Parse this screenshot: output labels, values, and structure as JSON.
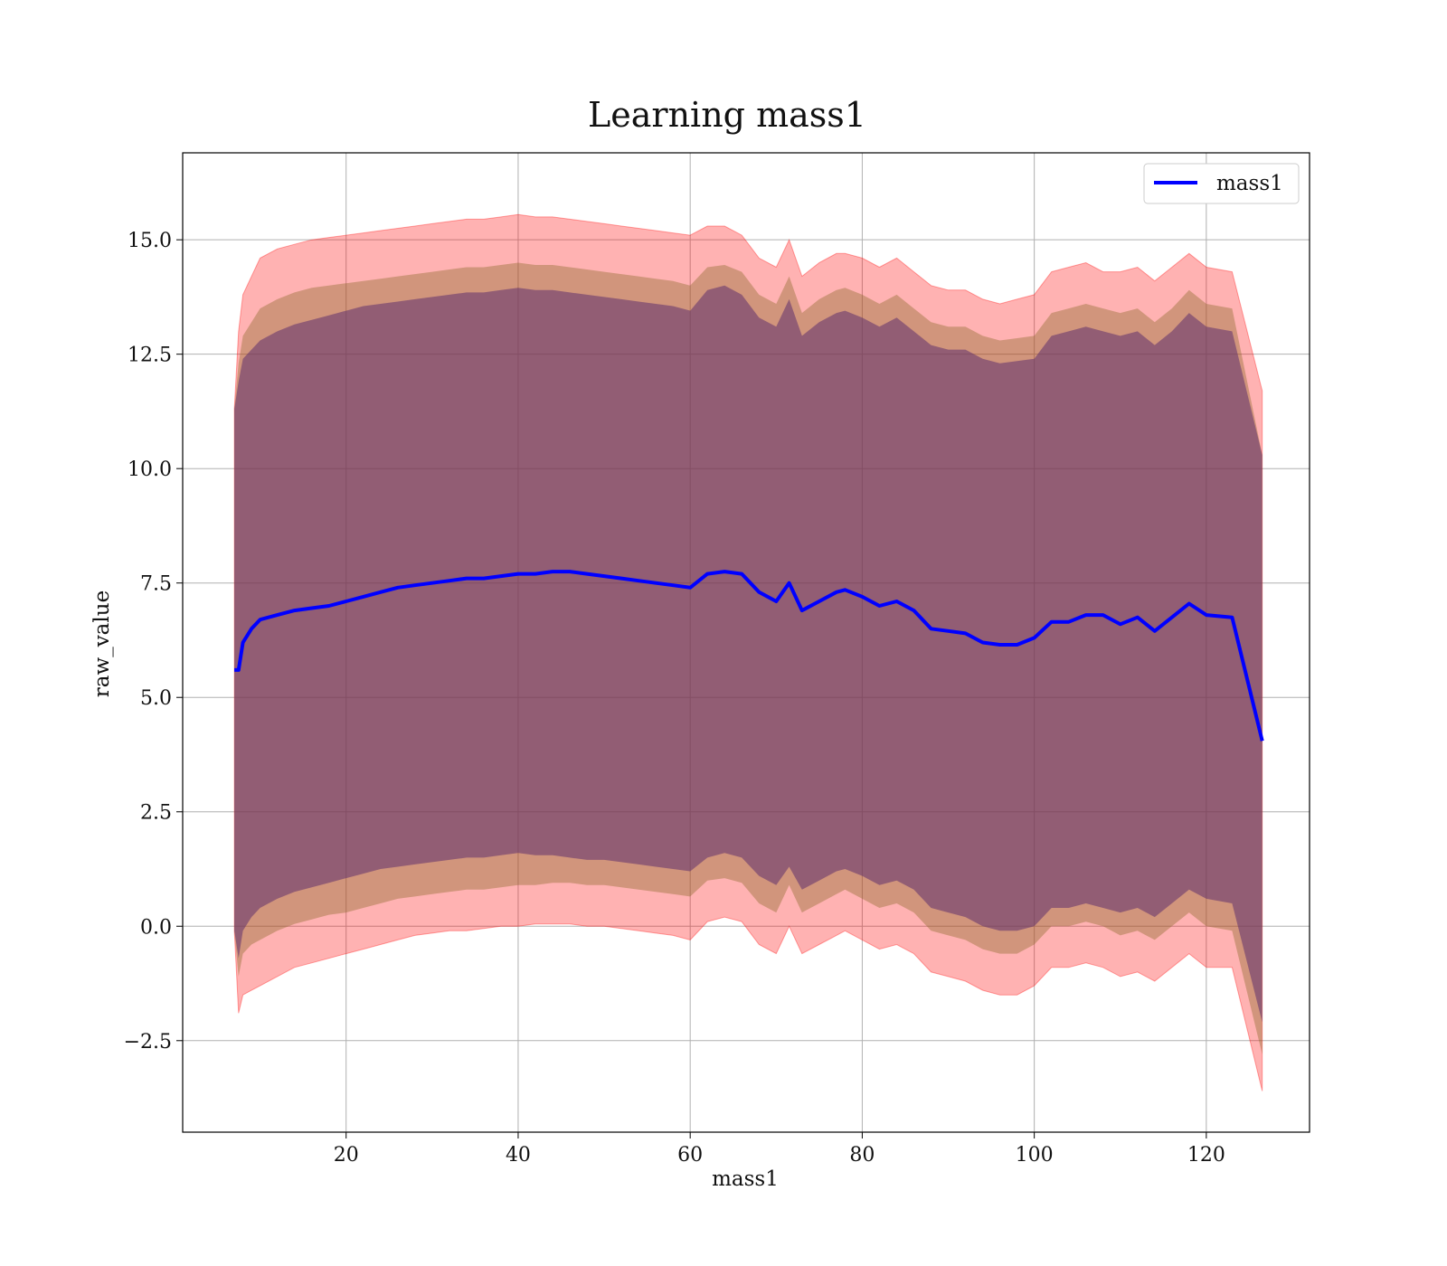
{
  "chart_data": {
    "type": "area",
    "title": "Learning mass1",
    "xlabel": "mass1",
    "ylabel": "raw_value",
    "xlim": [
      1,
      132
    ],
    "ylim": [
      -4.5,
      16.9
    ],
    "xticks": [
      20,
      40,
      60,
      80,
      100,
      120
    ],
    "yticks": [
      -2.5,
      0.0,
      2.5,
      5.0,
      7.5,
      10.0,
      12.5,
      15.0
    ],
    "xtick_labels": [
      "20",
      "40",
      "60",
      "80",
      "100",
      "120"
    ],
    "ytick_labels": [
      "−2.5",
      "0.0",
      "2.5",
      "5.0",
      "7.5",
      "10.0",
      "12.5",
      "15.0"
    ],
    "grid": true,
    "legend": {
      "position": "top-right",
      "entries": [
        "mass1"
      ]
    },
    "colors": {
      "line": "#0000ff",
      "band_outer": "#ff0000",
      "band_middle": "#8b6a2a",
      "band_inner": "#5e2f6e"
    },
    "series": [
      {
        "name": "mass1",
        "x": [
          7,
          7.5,
          8,
          9,
          10,
          12,
          14,
          16,
          18,
          20,
          22,
          24,
          26,
          28,
          30,
          32,
          34,
          36,
          38,
          40,
          42,
          44,
          46,
          48,
          50,
          52,
          54,
          56,
          58,
          60,
          62,
          64,
          66,
          68,
          70,
          71.5,
          73,
          75,
          77,
          78,
          80,
          82,
          84,
          86,
          88,
          90,
          92,
          94,
          96,
          98,
          100,
          102,
          104,
          106,
          108,
          110,
          112,
          114,
          116,
          118,
          120,
          123,
          126.5
        ],
        "y": [
          5.6,
          5.6,
          6.2,
          6.5,
          6.7,
          6.8,
          6.9,
          6.95,
          7.0,
          7.1,
          7.2,
          7.3,
          7.4,
          7.45,
          7.5,
          7.55,
          7.6,
          7.6,
          7.65,
          7.7,
          7.7,
          7.75,
          7.75,
          7.7,
          7.65,
          7.6,
          7.55,
          7.5,
          7.45,
          7.4,
          7.7,
          7.75,
          7.7,
          7.3,
          7.1,
          7.5,
          6.9,
          7.1,
          7.3,
          7.35,
          7.2,
          7.0,
          7.1,
          6.9,
          6.5,
          6.45,
          6.4,
          6.2,
          6.15,
          6.15,
          6.3,
          6.65,
          6.65,
          6.8,
          6.8,
          6.6,
          6.75,
          6.45,
          6.75,
          7.05,
          6.8,
          6.75,
          4.05
        ]
      }
    ],
    "bands": {
      "x": [
        7,
        7.5,
        8,
        9,
        10,
        12,
        14,
        16,
        18,
        20,
        22,
        24,
        26,
        28,
        30,
        32,
        34,
        36,
        38,
        40,
        42,
        44,
        46,
        48,
        50,
        52,
        54,
        56,
        58,
        60,
        62,
        64,
        66,
        68,
        70,
        71.5,
        73,
        75,
        77,
        78,
        80,
        82,
        84,
        86,
        88,
        90,
        92,
        94,
        96,
        98,
        100,
        102,
        104,
        106,
        108,
        110,
        112,
        114,
        116,
        118,
        120,
        123,
        126.5
      ],
      "outer_upper": [
        11.3,
        13.0,
        13.8,
        14.2,
        14.6,
        14.8,
        14.9,
        15.0,
        15.05,
        15.1,
        15.15,
        15.2,
        15.25,
        15.3,
        15.35,
        15.4,
        15.45,
        15.45,
        15.5,
        15.55,
        15.5,
        15.5,
        15.45,
        15.4,
        15.35,
        15.3,
        15.25,
        15.2,
        15.15,
        15.1,
        15.3,
        15.3,
        15.1,
        14.6,
        14.4,
        15.0,
        14.2,
        14.5,
        14.7,
        14.7,
        14.6,
        14.4,
        14.6,
        14.3,
        14.0,
        13.9,
        13.9,
        13.7,
        13.6,
        13.7,
        13.8,
        14.3,
        14.4,
        14.5,
        14.3,
        14.3,
        14.4,
        14.1,
        14.4,
        14.7,
        14.4,
        14.3,
        11.7
      ],
      "outer_lower": [
        -0.1,
        -1.9,
        -1.5,
        -1.4,
        -1.3,
        -1.1,
        -0.9,
        -0.8,
        -0.7,
        -0.6,
        -0.5,
        -0.4,
        -0.3,
        -0.2,
        -0.15,
        -0.1,
        -0.1,
        -0.05,
        0.0,
        0.0,
        0.05,
        0.05,
        0.05,
        0.0,
        0.0,
        -0.05,
        -0.1,
        -0.15,
        -0.2,
        -0.3,
        0.1,
        0.2,
        0.1,
        -0.4,
        -0.6,
        0.0,
        -0.6,
        -0.4,
        -0.2,
        -0.1,
        -0.3,
        -0.5,
        -0.4,
        -0.6,
        -1.0,
        -1.1,
        -1.2,
        -1.4,
        -1.5,
        -1.5,
        -1.3,
        -0.9,
        -0.9,
        -0.8,
        -0.9,
        -1.1,
        -1.0,
        -1.2,
        -0.9,
        -0.6,
        -0.9,
        -0.9,
        -3.6
      ],
      "middle_upper": [
        11.3,
        12.3,
        12.9,
        13.2,
        13.5,
        13.7,
        13.85,
        13.95,
        14.0,
        14.05,
        14.1,
        14.15,
        14.2,
        14.25,
        14.3,
        14.35,
        14.4,
        14.4,
        14.45,
        14.5,
        14.45,
        14.45,
        14.4,
        14.35,
        14.3,
        14.25,
        14.2,
        14.15,
        14.1,
        14.0,
        14.4,
        14.45,
        14.3,
        13.8,
        13.6,
        14.2,
        13.4,
        13.7,
        13.9,
        13.95,
        13.8,
        13.6,
        13.8,
        13.5,
        13.2,
        13.1,
        13.1,
        12.9,
        12.8,
        12.85,
        12.9,
        13.4,
        13.5,
        13.6,
        13.5,
        13.4,
        13.5,
        13.2,
        13.5,
        13.9,
        13.6,
        13.5,
        10.3
      ],
      "middle_lower": [
        -0.1,
        -1.1,
        -0.6,
        -0.4,
        -0.3,
        -0.1,
        0.05,
        0.15,
        0.25,
        0.3,
        0.4,
        0.5,
        0.6,
        0.65,
        0.7,
        0.75,
        0.8,
        0.8,
        0.85,
        0.9,
        0.9,
        0.95,
        0.95,
        0.9,
        0.9,
        0.85,
        0.8,
        0.75,
        0.7,
        0.65,
        1.0,
        1.05,
        0.95,
        0.5,
        0.3,
        0.9,
        0.3,
        0.5,
        0.7,
        0.8,
        0.6,
        0.4,
        0.5,
        0.3,
        -0.1,
        -0.2,
        -0.3,
        -0.5,
        -0.6,
        -0.6,
        -0.4,
        0.0,
        0.0,
        0.1,
        0.0,
        -0.2,
        -0.1,
        -0.3,
        0.0,
        0.3,
        0.0,
        -0.1,
        -2.8
      ],
      "inner_upper": [
        11.3,
        11.9,
        12.4,
        12.6,
        12.8,
        13.0,
        13.15,
        13.25,
        13.35,
        13.45,
        13.55,
        13.6,
        13.65,
        13.7,
        13.75,
        13.8,
        13.85,
        13.85,
        13.9,
        13.95,
        13.9,
        13.9,
        13.85,
        13.8,
        13.75,
        13.7,
        13.65,
        13.6,
        13.55,
        13.45,
        13.9,
        14.0,
        13.8,
        13.3,
        13.1,
        13.7,
        12.9,
        13.2,
        13.4,
        13.45,
        13.3,
        13.1,
        13.3,
        13.0,
        12.7,
        12.6,
        12.6,
        12.4,
        12.3,
        12.35,
        12.4,
        12.9,
        13.0,
        13.1,
        13.0,
        12.9,
        13.0,
        12.7,
        13.0,
        13.4,
        13.1,
        13.0,
        10.3
      ],
      "inner_lower": [
        -0.1,
        -0.7,
        -0.1,
        0.2,
        0.4,
        0.6,
        0.75,
        0.85,
        0.95,
        1.05,
        1.15,
        1.25,
        1.3,
        1.35,
        1.4,
        1.45,
        1.5,
        1.5,
        1.55,
        1.6,
        1.55,
        1.55,
        1.5,
        1.45,
        1.45,
        1.4,
        1.35,
        1.3,
        1.25,
        1.2,
        1.5,
        1.6,
        1.5,
        1.1,
        0.9,
        1.3,
        0.8,
        1.0,
        1.2,
        1.25,
        1.1,
        0.9,
        1.0,
        0.8,
        0.4,
        0.3,
        0.2,
        0.0,
        -0.1,
        -0.1,
        0.0,
        0.4,
        0.4,
        0.5,
        0.4,
        0.3,
        0.4,
        0.2,
        0.5,
        0.8,
        0.6,
        0.5,
        -2.1
      ]
    }
  }
}
